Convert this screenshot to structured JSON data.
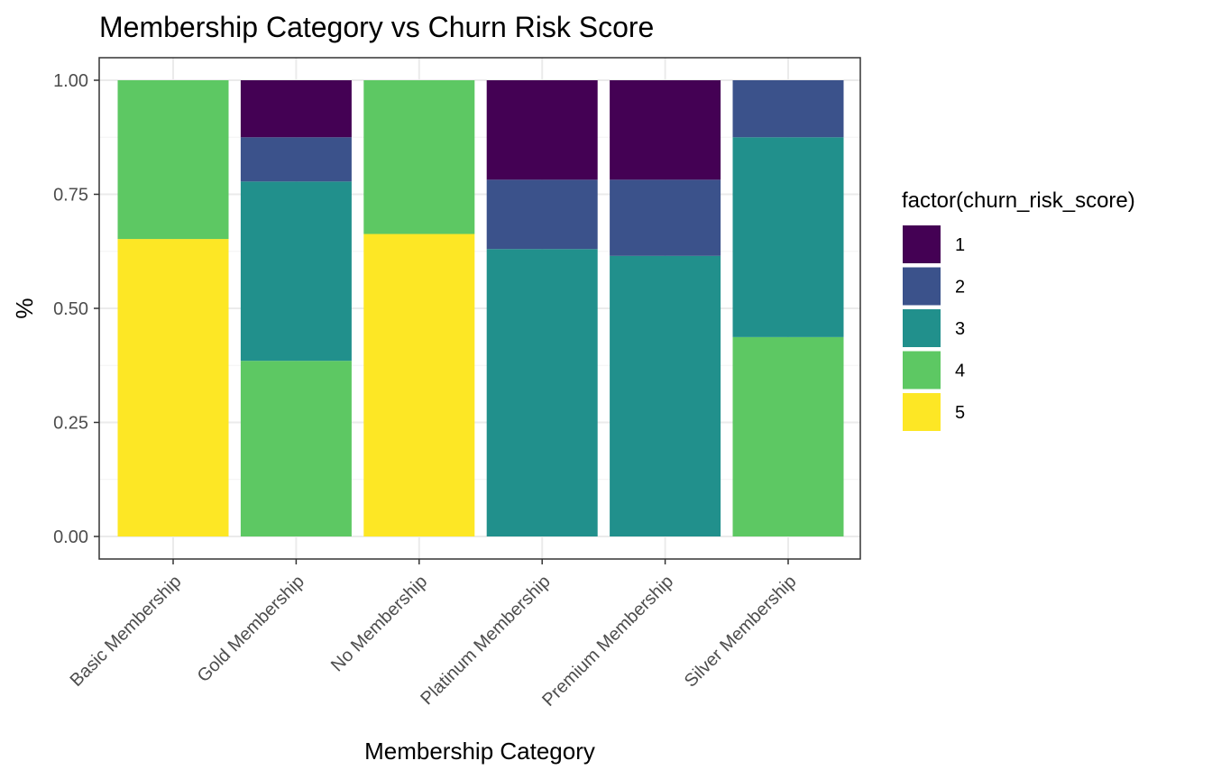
{
  "chart_data": {
    "type": "bar",
    "stacked": true,
    "title": "Membership Category vs Churn Risk Score",
    "xlabel": "Membership Category",
    "ylabel": "%",
    "ylim": [
      0,
      1
    ],
    "yticks": [
      "0.00",
      "0.25",
      "0.50",
      "0.75",
      "1.00"
    ],
    "grid": true,
    "legend_title": "factor(churn_risk_score)",
    "legend_position": "right",
    "categories": [
      "Basic Membership",
      "Gold Membership",
      "No Membership",
      "Platinum Membership",
      "Premium Membership",
      "Silver Membership"
    ],
    "series": [
      {
        "name": "1",
        "color": "#440154",
        "values": [
          0.0,
          0.125,
          0.0,
          0.218,
          0.218,
          0.0
        ]
      },
      {
        "name": "2",
        "color": "#3B528B",
        "values": [
          0.0,
          0.097,
          0.0,
          0.152,
          0.167,
          0.125
        ]
      },
      {
        "name": "3",
        "color": "#21908C",
        "values": [
          0.0,
          0.393,
          0.0,
          0.63,
          0.615,
          0.438
        ]
      },
      {
        "name": "4",
        "color": "#5DC863",
        "values": [
          0.348,
          0.385,
          0.337,
          0.0,
          0.0,
          0.437
        ]
      },
      {
        "name": "5",
        "color": "#FDE725",
        "values": [
          0.652,
          0.0,
          0.663,
          0.0,
          0.0,
          0.0
        ]
      }
    ]
  }
}
